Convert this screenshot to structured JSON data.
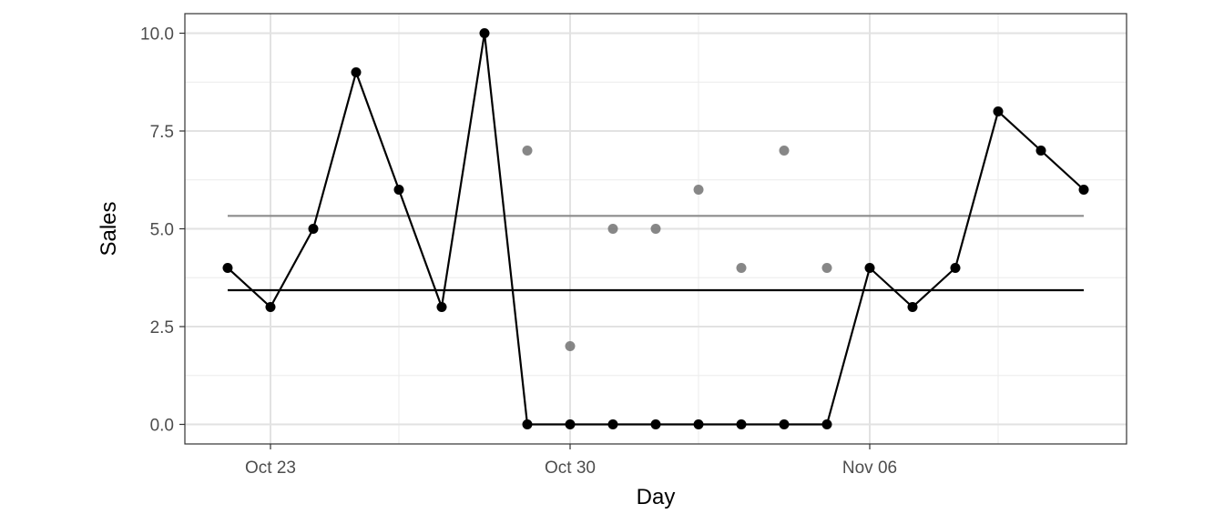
{
  "chart_data": {
    "type": "line",
    "xlabel": "Day",
    "ylabel": "Sales",
    "x_ticks": [
      {
        "date": "2023-10-23",
        "label": "Oct 23"
      },
      {
        "date": "2023-10-30",
        "label": "Oct 30"
      },
      {
        "date": "2023-11-06",
        "label": "Nov 06"
      }
    ],
    "y_ticks": [
      {
        "value": 0,
        "label": "0.0"
      },
      {
        "value": 2.5,
        "label": "2.5"
      },
      {
        "value": 5,
        "label": "5.0"
      },
      {
        "value": 7.5,
        "label": "7.5"
      },
      {
        "value": 10,
        "label": "10.0"
      }
    ],
    "ylim": [
      -0.5,
      10.5
    ],
    "xlim": [
      "2023-10-21",
      "2023-11-12"
    ],
    "grid": true,
    "colors": {
      "sales_line": "#000000",
      "imputed_points": "#7a7a7a",
      "mean_line_gray": "#8c8c8c"
    },
    "series": [
      {
        "role": "sales_line",
        "x": [
          "2023-10-22",
          "2023-10-23",
          "2023-10-24",
          "2023-10-25",
          "2023-10-26",
          "2023-10-27",
          "2023-10-28",
          "2023-10-29",
          "2023-10-30",
          "2023-10-31",
          "2023-11-01",
          "2023-11-02",
          "2023-11-03",
          "2023-11-04",
          "2023-11-05",
          "2023-11-06",
          "2023-11-07",
          "2023-11-08",
          "2023-11-09",
          "2023-11-10",
          "2023-11-11"
        ],
        "y": [
          4,
          3,
          5,
          9,
          6,
          3,
          10,
          0,
          0,
          0,
          0,
          0,
          0,
          0,
          0,
          4,
          3,
          4,
          8,
          7,
          6
        ]
      },
      {
        "role": "imputed_points",
        "x": [
          "2023-10-29",
          "2023-10-30",
          "2023-10-31",
          "2023-11-01",
          "2023-11-02",
          "2023-11-03",
          "2023-11-04",
          "2023-11-05"
        ],
        "y": [
          7,
          2,
          5,
          5,
          6,
          4,
          7,
          4
        ]
      }
    ],
    "hlines": [
      {
        "role": "mean_line_gray",
        "y": 5.33,
        "x_from": "2023-10-22",
        "x_to": "2023-11-11"
      },
      {
        "role": "mean_line_black",
        "y": 3.43,
        "x_from": "2023-10-22",
        "x_to": "2023-11-11"
      }
    ]
  }
}
